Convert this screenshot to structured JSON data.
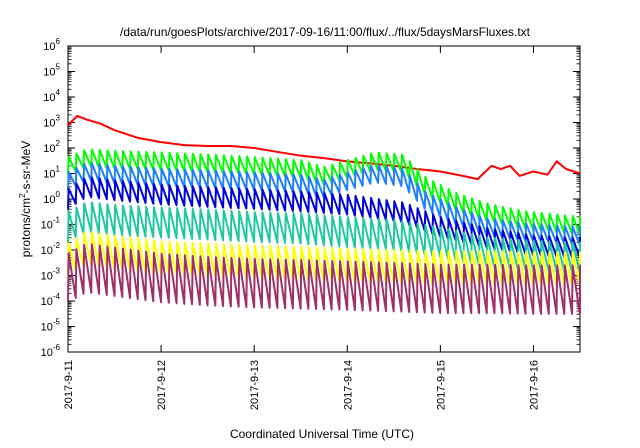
{
  "chart_data": {
    "type": "line",
    "title": "/data/run/goesPlots/archive/2017-09-16/11:00/flux/../flux/5daysMarsFluxes.txt",
    "xlabel": "Coordinated Universal Time (UTC)",
    "ylabel": {
      "pre": "protons/cm",
      "sup": "2",
      "post": "-s-sr-MeV"
    },
    "yscale": "log",
    "ylim": [
      1e-06,
      1000000.0
    ],
    "xlim": [
      0,
      5.5
    ],
    "x_unit": "days since 2017-9-11 00:00",
    "x_ticks": [
      {
        "x": 0,
        "label": "2017-9-11"
      },
      {
        "x": 1,
        "label": "2017-9-12"
      },
      {
        "x": 2,
        "label": "2017-9-13"
      },
      {
        "x": 3,
        "label": "2017-9-14"
      },
      {
        "x": 4,
        "label": "2017-9-15"
      },
      {
        "x": 5,
        "label": "2017-9-16"
      }
    ],
    "y_ticks": [
      {
        "exp": -6,
        "base": "10",
        "sup": "-6"
      },
      {
        "exp": -5,
        "base": "10",
        "sup": "-5"
      },
      {
        "exp": -4,
        "base": "10",
        "sup": "-4"
      },
      {
        "exp": -3,
        "base": "10",
        "sup": "-3"
      },
      {
        "exp": -2,
        "base": "10",
        "sup": "-2"
      },
      {
        "exp": -1,
        "base": "10",
        "sup": "-1"
      },
      {
        "exp": 0,
        "base": "10",
        "sup": "0"
      },
      {
        "exp": 1,
        "base": "10",
        "sup": "1"
      },
      {
        "exp": 2,
        "base": "10",
        "sup": "2"
      },
      {
        "exp": 3,
        "base": "10",
        "sup": "3"
      },
      {
        "exp": 4,
        "base": "10",
        "sup": "4"
      },
      {
        "exp": 5,
        "base": "10",
        "sup": "5"
      },
      {
        "exp": 6,
        "base": "10",
        "sup": "6"
      }
    ],
    "series": [
      {
        "color": "#ff0000",
        "kind": "smooth",
        "points": [
          [
            0,
            800
          ],
          [
            0.1,
            1800
          ],
          [
            0.2,
            1300
          ],
          [
            0.35,
            900
          ],
          [
            0.5,
            500
          ],
          [
            0.75,
            250
          ],
          [
            1.0,
            170
          ],
          [
            1.25,
            130
          ],
          [
            1.5,
            120
          ],
          [
            1.75,
            120
          ],
          [
            2.0,
            100
          ],
          [
            2.25,
            70
          ],
          [
            2.5,
            50
          ],
          [
            2.75,
            40
          ],
          [
            3.0,
            30
          ],
          [
            3.25,
            25
          ],
          [
            3.5,
            20
          ],
          [
            3.75,
            15
          ],
          [
            4.0,
            12
          ],
          [
            4.25,
            8
          ],
          [
            4.4,
            6
          ],
          [
            4.55,
            20
          ],
          [
            4.65,
            15
          ],
          [
            4.75,
            20
          ],
          [
            4.85,
            8
          ],
          [
            5.0,
            12
          ],
          [
            5.15,
            9
          ],
          [
            5.25,
            30
          ],
          [
            5.35,
            15
          ],
          [
            5.5,
            10
          ]
        ]
      },
      {
        "color": "#00ff00",
        "kind": "sawtooth",
        "period": 0.0833,
        "ratio": 5,
        "points": [
          [
            0,
            20
          ],
          [
            0.2,
            40
          ],
          [
            0.5,
            35
          ],
          [
            1.0,
            30
          ],
          [
            1.5,
            25
          ],
          [
            2.0,
            20
          ],
          [
            2.5,
            15
          ],
          [
            2.75,
            8
          ],
          [
            3.0,
            15
          ],
          [
            3.3,
            30
          ],
          [
            3.6,
            25
          ],
          [
            3.85,
            3
          ],
          [
            4.2,
            0.7
          ],
          [
            4.5,
            0.3
          ],
          [
            4.9,
            0.15
          ],
          [
            5.5,
            0.09
          ]
        ]
      },
      {
        "color": "#1e7fff",
        "kind": "sawtooth",
        "period": 0.0833,
        "ratio": 5,
        "points": [
          [
            0,
            5
          ],
          [
            0.2,
            12
          ],
          [
            0.5,
            9
          ],
          [
            1.0,
            7
          ],
          [
            1.5,
            6
          ],
          [
            2.0,
            5
          ],
          [
            2.5,
            4
          ],
          [
            2.75,
            2.5
          ],
          [
            3.0,
            5
          ],
          [
            3.3,
            10
          ],
          [
            3.6,
            7
          ],
          [
            3.85,
            0.8
          ],
          [
            4.2,
            0.2
          ],
          [
            4.5,
            0.08
          ],
          [
            4.9,
            0.05
          ],
          [
            5.5,
            0.035
          ]
        ]
      },
      {
        "color": "#0000dd",
        "kind": "sawtooth",
        "period": 0.0833,
        "ratio": 6,
        "points": [
          [
            0,
            1
          ],
          [
            0.2,
            3
          ],
          [
            0.5,
            2.2
          ],
          [
            1.0,
            1.5
          ],
          [
            1.5,
            1.2
          ],
          [
            2.0,
            1
          ],
          [
            2.5,
            0.8
          ],
          [
            3.0,
            0.6
          ],
          [
            3.6,
            0.3
          ],
          [
            4.0,
            0.08
          ],
          [
            4.5,
            0.03
          ],
          [
            5.0,
            0.015
          ],
          [
            5.5,
            0.012
          ]
        ]
      },
      {
        "color": "#20c8a0",
        "kind": "sawtooth",
        "period": 0.0833,
        "ratio": 15,
        "points": [
          [
            0,
            0.08
          ],
          [
            0.2,
            0.2
          ],
          [
            0.5,
            0.15
          ],
          [
            1.0,
            0.12
          ],
          [
            1.5,
            0.1
          ],
          [
            2.0,
            0.08
          ],
          [
            2.5,
            0.07
          ],
          [
            3.0,
            0.05
          ],
          [
            3.5,
            0.04
          ],
          [
            4.0,
            0.02
          ],
          [
            4.5,
            0.008
          ],
          [
            5.0,
            0.006
          ],
          [
            5.5,
            0.005
          ]
        ]
      },
      {
        "color": "#ffff00",
        "kind": "sawtooth",
        "period": 0.0833,
        "ratio": 20,
        "points": [
          [
            0,
            0.004
          ],
          [
            0.2,
            0.012
          ],
          [
            0.5,
            0.008
          ],
          [
            1.0,
            0.005
          ],
          [
            1.5,
            0.004
          ],
          [
            2.0,
            0.0035
          ],
          [
            2.5,
            0.003
          ],
          [
            3.0,
            0.0025
          ],
          [
            3.5,
            0.0022
          ],
          [
            4.0,
            0.002
          ],
          [
            4.5,
            0.002
          ],
          [
            5.0,
            0.0018
          ],
          [
            5.5,
            0.0018
          ]
        ]
      },
      {
        "color": "#a0306a",
        "kind": "sawtooth",
        "period": 0.0833,
        "ratio": 80,
        "points": [
          [
            0,
            0.0008
          ],
          [
            0.2,
            0.002
          ],
          [
            0.5,
            0.0014
          ],
          [
            1.0,
            0.0008
          ],
          [
            1.5,
            0.0006
          ],
          [
            2.0,
            0.0005
          ],
          [
            2.5,
            0.00045
          ],
          [
            3.0,
            0.0004
          ],
          [
            3.5,
            0.00035
          ],
          [
            4.0,
            0.0003
          ],
          [
            4.5,
            0.0003
          ],
          [
            5.0,
            0.00028
          ],
          [
            5.5,
            0.00028
          ]
        ]
      }
    ]
  }
}
